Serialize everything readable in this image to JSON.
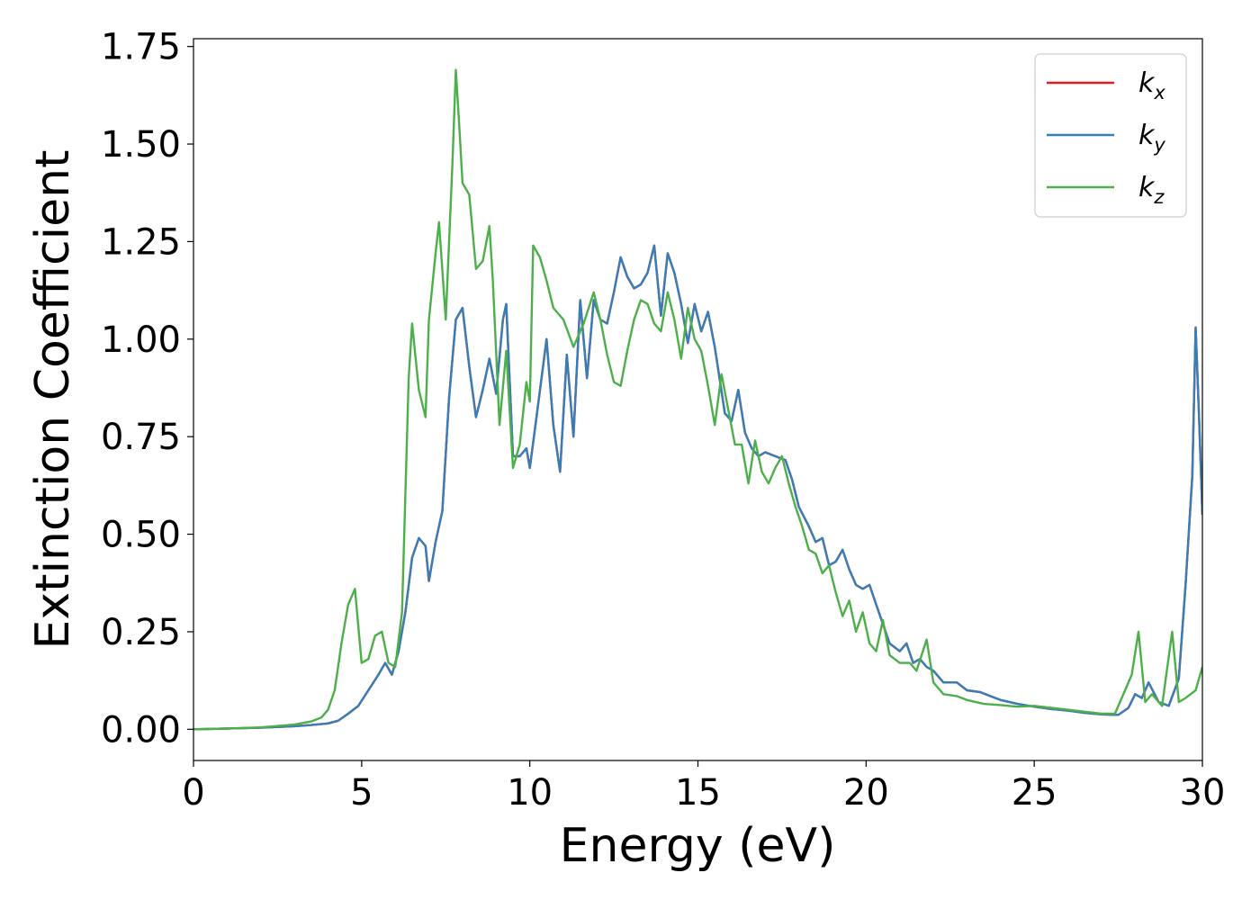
{
  "chart_data": {
    "type": "line",
    "xlabel": "Energy (eV)",
    "ylabel": "Extinction Coefficient",
    "xlim": [
      0,
      30
    ],
    "ylim": [
      -0.08,
      1.77
    ],
    "xticks": [
      0,
      5,
      10,
      15,
      20,
      25,
      30
    ],
    "xtick_labels": [
      "0",
      "5",
      "10",
      "15",
      "20",
      "25",
      "30"
    ],
    "yticks": [
      0,
      0.25,
      0.5,
      0.75,
      1.0,
      1.25,
      1.5,
      1.75
    ],
    "ytick_labels": [
      "0.00",
      "0.25",
      "0.50",
      "0.75",
      "1.00",
      "1.25",
      "1.50",
      "1.75"
    ],
    "grid": false,
    "legend_position": "top-right",
    "series": [
      {
        "name": "k",
        "subscript": "x",
        "color": "#e41a1c",
        "x": [
          0,
          1,
          2,
          3,
          3.5,
          4,
          4.3,
          4.6,
          4.9,
          5.2,
          5.5,
          5.7,
          5.9,
          6.1,
          6.3,
          6.5,
          6.7,
          6.9,
          7.0,
          7.2,
          7.4,
          7.6,
          7.8,
          8.0,
          8.2,
          8.4,
          8.6,
          8.8,
          9.0,
          9.2,
          9.3,
          9.5,
          9.7,
          9.9,
          10.0,
          10.2,
          10.5,
          10.7,
          10.9,
          11.1,
          11.3,
          11.5,
          11.7,
          11.9,
          12.1,
          12.3,
          12.5,
          12.7,
          12.9,
          13.1,
          13.3,
          13.5,
          13.7,
          13.9,
          14.1,
          14.3,
          14.5,
          14.7,
          14.9,
          15.1,
          15.3,
          15.5,
          15.8,
          16.0,
          16.2,
          16.4,
          16.6,
          16.8,
          17.0,
          17.3,
          17.6,
          17.8,
          18.0,
          18.3,
          18.5,
          18.7,
          18.9,
          19.1,
          19.3,
          19.5,
          19.7,
          19.9,
          20.1,
          20.3,
          20.5,
          20.7,
          21.0,
          21.2,
          21.4,
          21.6,
          21.8,
          22.0,
          22.3,
          22.7,
          23.0,
          23.4,
          23.7,
          24.0,
          24.5,
          25.0,
          25.5,
          26.0,
          26.5,
          27.0,
          27.5,
          27.8,
          28.0,
          28.2,
          28.4,
          28.7,
          29.0,
          29.3,
          29.5,
          29.7,
          29.8,
          29.9,
          30.0
        ],
        "y": [
          0.0,
          0.002,
          0.004,
          0.008,
          0.011,
          0.015,
          0.022,
          0.04,
          0.06,
          0.1,
          0.14,
          0.17,
          0.14,
          0.2,
          0.3,
          0.44,
          0.49,
          0.47,
          0.38,
          0.48,
          0.56,
          0.85,
          1.05,
          1.08,
          0.93,
          0.8,
          0.87,
          0.95,
          0.86,
          1.05,
          1.09,
          0.7,
          0.7,
          0.72,
          0.67,
          0.8,
          1.0,
          0.78,
          0.66,
          0.96,
          0.75,
          1.1,
          0.9,
          1.1,
          1.05,
          1.04,
          1.12,
          1.21,
          1.16,
          1.13,
          1.14,
          1.17,
          1.24,
          1.06,
          1.22,
          1.17,
          1.09,
          0.99,
          1.09,
          1.02,
          1.07,
          0.98,
          0.81,
          0.79,
          0.87,
          0.76,
          0.72,
          0.7,
          0.71,
          0.7,
          0.69,
          0.64,
          0.57,
          0.52,
          0.48,
          0.49,
          0.42,
          0.43,
          0.46,
          0.41,
          0.37,
          0.36,
          0.37,
          0.32,
          0.27,
          0.22,
          0.2,
          0.22,
          0.17,
          0.18,
          0.16,
          0.15,
          0.12,
          0.12,
          0.1,
          0.095,
          0.085,
          0.075,
          0.065,
          0.058,
          0.052,
          0.048,
          0.042,
          0.038,
          0.037,
          0.055,
          0.09,
          0.08,
          0.12,
          0.07,
          0.06,
          0.13,
          0.37,
          0.65,
          1.03,
          0.8,
          0.55
        ]
      },
      {
        "name": "k",
        "subscript": "y",
        "color": "#377eb8",
        "x": [
          0,
          1,
          2,
          3,
          3.5,
          4,
          4.3,
          4.6,
          4.9,
          5.2,
          5.5,
          5.7,
          5.9,
          6.1,
          6.3,
          6.5,
          6.7,
          6.9,
          7.0,
          7.2,
          7.4,
          7.6,
          7.8,
          8.0,
          8.2,
          8.4,
          8.6,
          8.8,
          9.0,
          9.2,
          9.3,
          9.5,
          9.7,
          9.9,
          10.0,
          10.2,
          10.5,
          10.7,
          10.9,
          11.1,
          11.3,
          11.5,
          11.7,
          11.9,
          12.1,
          12.3,
          12.5,
          12.7,
          12.9,
          13.1,
          13.3,
          13.5,
          13.7,
          13.9,
          14.1,
          14.3,
          14.5,
          14.7,
          14.9,
          15.1,
          15.3,
          15.5,
          15.8,
          16.0,
          16.2,
          16.4,
          16.6,
          16.8,
          17.0,
          17.3,
          17.6,
          17.8,
          18.0,
          18.3,
          18.5,
          18.7,
          18.9,
          19.1,
          19.3,
          19.5,
          19.7,
          19.9,
          20.1,
          20.3,
          20.5,
          20.7,
          21.0,
          21.2,
          21.4,
          21.6,
          21.8,
          22.0,
          22.3,
          22.7,
          23.0,
          23.4,
          23.7,
          24.0,
          24.5,
          25.0,
          25.5,
          26.0,
          26.5,
          27.0,
          27.5,
          27.8,
          28.0,
          28.2,
          28.4,
          28.7,
          29.0,
          29.3,
          29.5,
          29.7,
          29.8,
          29.9,
          30.0
        ],
        "y": [
          0.0,
          0.002,
          0.004,
          0.008,
          0.011,
          0.015,
          0.022,
          0.04,
          0.06,
          0.1,
          0.14,
          0.17,
          0.14,
          0.2,
          0.3,
          0.44,
          0.49,
          0.47,
          0.38,
          0.48,
          0.56,
          0.85,
          1.05,
          1.08,
          0.93,
          0.8,
          0.87,
          0.95,
          0.86,
          1.05,
          1.09,
          0.7,
          0.7,
          0.72,
          0.67,
          0.8,
          1.0,
          0.78,
          0.66,
          0.96,
          0.75,
          1.1,
          0.9,
          1.1,
          1.05,
          1.04,
          1.12,
          1.21,
          1.16,
          1.13,
          1.14,
          1.17,
          1.24,
          1.06,
          1.22,
          1.17,
          1.09,
          0.99,
          1.09,
          1.02,
          1.07,
          0.98,
          0.81,
          0.79,
          0.87,
          0.76,
          0.72,
          0.7,
          0.71,
          0.7,
          0.69,
          0.64,
          0.57,
          0.52,
          0.48,
          0.49,
          0.42,
          0.43,
          0.46,
          0.41,
          0.37,
          0.36,
          0.37,
          0.32,
          0.27,
          0.22,
          0.2,
          0.22,
          0.17,
          0.18,
          0.16,
          0.15,
          0.12,
          0.12,
          0.1,
          0.095,
          0.085,
          0.075,
          0.065,
          0.058,
          0.052,
          0.048,
          0.042,
          0.038,
          0.037,
          0.055,
          0.09,
          0.08,
          0.12,
          0.07,
          0.06,
          0.13,
          0.37,
          0.65,
          1.03,
          0.8,
          0.55
        ]
      },
      {
        "name": "k",
        "subscript": "z",
        "color": "#4daf4a",
        "x": [
          0,
          1,
          2,
          3,
          3.5,
          3.8,
          4.0,
          4.2,
          4.4,
          4.6,
          4.8,
          5.0,
          5.2,
          5.4,
          5.6,
          5.8,
          6.0,
          6.2,
          6.4,
          6.5,
          6.7,
          6.9,
          7.0,
          7.2,
          7.3,
          7.5,
          7.7,
          7.8,
          7.9,
          8.0,
          8.2,
          8.4,
          8.6,
          8.8,
          8.9,
          9.1,
          9.3,
          9.5,
          9.7,
          9.9,
          10.0,
          10.1,
          10.3,
          10.5,
          10.7,
          11.0,
          11.3,
          11.6,
          11.9,
          12.1,
          12.3,
          12.5,
          12.7,
          12.9,
          13.1,
          13.3,
          13.5,
          13.7,
          13.9,
          14.1,
          14.3,
          14.5,
          14.7,
          14.9,
          15.1,
          15.3,
          15.5,
          15.7,
          15.9,
          16.1,
          16.3,
          16.5,
          16.7,
          16.9,
          17.1,
          17.3,
          17.5,
          17.7,
          17.9,
          18.1,
          18.3,
          18.5,
          18.7,
          18.9,
          19.1,
          19.3,
          19.5,
          19.7,
          19.9,
          20.1,
          20.3,
          20.5,
          20.7,
          21.0,
          21.3,
          21.5,
          21.8,
          22.0,
          22.3,
          22.7,
          23.0,
          23.5,
          24.0,
          24.5,
          25.0,
          25.5,
          26.0,
          26.5,
          27.0,
          27.4,
          27.7,
          27.9,
          28.1,
          28.3,
          28.5,
          28.8,
          29.1,
          29.3,
          29.5,
          29.8,
          30.0
        ],
        "y": [
          0.0,
          0.002,
          0.005,
          0.012,
          0.02,
          0.03,
          0.05,
          0.1,
          0.22,
          0.32,
          0.36,
          0.17,
          0.18,
          0.24,
          0.25,
          0.17,
          0.16,
          0.3,
          0.9,
          1.04,
          0.87,
          0.8,
          1.05,
          1.22,
          1.3,
          1.05,
          1.45,
          1.69,
          1.55,
          1.4,
          1.37,
          1.18,
          1.2,
          1.29,
          1.15,
          0.78,
          0.97,
          0.67,
          0.73,
          0.89,
          0.84,
          1.24,
          1.21,
          1.15,
          1.08,
          1.05,
          0.98,
          1.04,
          1.12,
          1.05,
          0.96,
          0.89,
          0.88,
          0.97,
          1.05,
          1.1,
          1.09,
          1.04,
          1.02,
          1.12,
          1.05,
          0.95,
          1.08,
          1.0,
          0.97,
          0.88,
          0.78,
          0.91,
          0.82,
          0.73,
          0.73,
          0.63,
          0.74,
          0.66,
          0.63,
          0.67,
          0.7,
          0.63,
          0.57,
          0.52,
          0.46,
          0.45,
          0.4,
          0.42,
          0.35,
          0.29,
          0.33,
          0.25,
          0.3,
          0.22,
          0.2,
          0.28,
          0.19,
          0.17,
          0.17,
          0.15,
          0.23,
          0.12,
          0.09,
          0.085,
          0.075,
          0.065,
          0.062,
          0.058,
          0.06,
          0.055,
          0.05,
          0.045,
          0.04,
          0.04,
          0.1,
          0.14,
          0.25,
          0.07,
          0.09,
          0.06,
          0.25,
          0.07,
          0.08,
          0.1,
          0.16
        ]
      }
    ]
  }
}
